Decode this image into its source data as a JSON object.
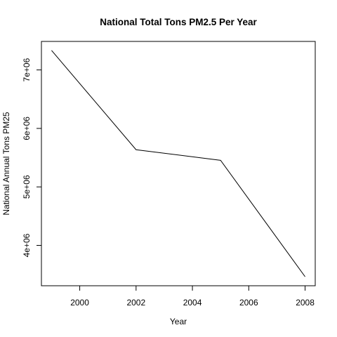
{
  "chart_data": {
    "type": "line",
    "title": "National Total Tons PM2.5 Per Year",
    "xlabel": "Year",
    "ylabel": "National Annual Tons PM25",
    "x": [
      1999,
      2002,
      2005,
      2008
    ],
    "series": [
      {
        "values": [
          7332967,
          5635780,
          5454703,
          3464206
        ]
      }
    ],
    "xlim": [
      1998.64,
      2008.36
    ],
    "ylim": [
      3309816,
      7487357
    ],
    "x_ticks": [
      2000,
      2002,
      2004,
      2006,
      2008
    ],
    "x_tick_labels": [
      "2000",
      "2002",
      "2004",
      "2006",
      "2008"
    ],
    "y_ticks": [
      4000000,
      5000000,
      6000000,
      7000000
    ],
    "y_tick_labels": [
      "4e+06",
      "5e+06",
      "6e+06",
      "7e+06"
    ],
    "grid": false,
    "legend": "none",
    "line_color": "#000000"
  }
}
